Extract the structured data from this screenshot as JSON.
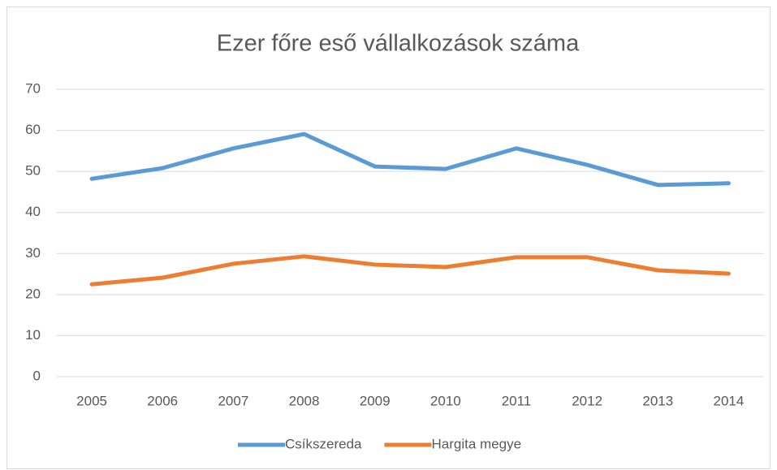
{
  "chart_data": {
    "type": "line",
    "title": "Ezer főre eső vállalkozások száma",
    "categories": [
      "2005",
      "2006",
      "2007",
      "2008",
      "2009",
      "2010",
      "2011",
      "2012",
      "2013",
      "2014"
    ],
    "series": [
      {
        "name": "Csíkszereda",
        "color": "#5b9bd5",
        "values": [
          48.2,
          50.8,
          55.6,
          59.1,
          51.2,
          50.6,
          55.6,
          51.6,
          46.7,
          47.1
        ]
      },
      {
        "name": "Hargita megye",
        "color": "#ed7d31",
        "values": [
          22.5,
          24.1,
          27.5,
          29.3,
          27.3,
          26.7,
          29.1,
          29.1,
          25.9,
          25.1
        ]
      }
    ],
    "ylim": [
      0,
      70
    ],
    "yticks": [
      0,
      10,
      20,
      30,
      40,
      50,
      60,
      70
    ],
    "grid": true,
    "legend": "bottom"
  }
}
